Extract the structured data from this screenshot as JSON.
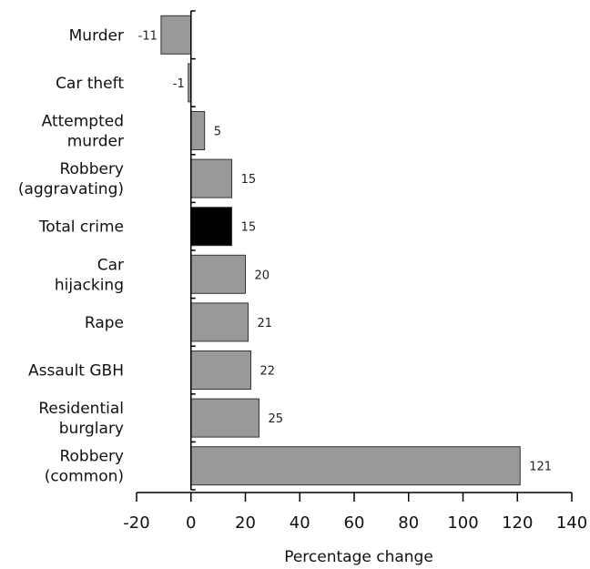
{
  "chart_data": {
    "type": "bar",
    "orientation": "horizontal",
    "categories": [
      [
        "Murder"
      ],
      [
        "Car theft"
      ],
      [
        "Attempted",
        "murder"
      ],
      [
        "Robbery",
        "(aggravating)"
      ],
      [
        "Total crime"
      ],
      [
        "Car",
        "hijacking"
      ],
      [
        "Rape"
      ],
      [
        "Assault GBH"
      ],
      [
        "Residential",
        "burglary"
      ],
      [
        "Robbery",
        "(common)"
      ]
    ],
    "values": [
      -11,
      -1,
      5,
      15,
      15,
      20,
      21,
      22,
      25,
      121
    ],
    "value_labels": [
      "-11",
      "-1",
      "5",
      "15",
      "15",
      "20",
      "21",
      "22",
      "25",
      "121"
    ],
    "highlight_index": 4,
    "colors": {
      "bar": "#999999",
      "highlight": "#000000",
      "outline": "#333333"
    },
    "xlabel": "Percentage change",
    "xlim": [
      -20,
      140
    ],
    "xticks": [
      -20,
      0,
      20,
      40,
      60,
      80,
      100,
      120,
      140
    ],
    "xtick_labels": [
      "-20",
      "0",
      "20",
      "40",
      "60",
      "80",
      "100",
      "120",
      "140"
    ],
    "grid": false,
    "legend": "none"
  }
}
